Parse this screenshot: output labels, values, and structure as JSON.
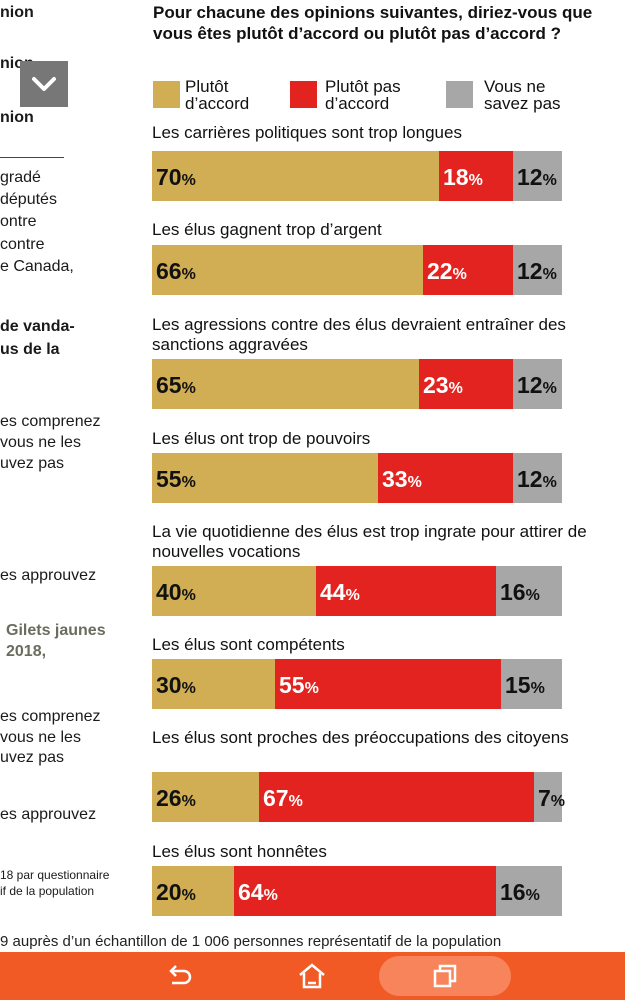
{
  "left_column": [
    "nion",
    "nion",
    "nion",
    "gradé",
    "députés",
    "ontre",
    "contre",
    "e Canada,",
    "de vanda-",
    "us de la",
    "es comprenez",
    "vous ne les",
    "uvez pas",
    "es approuvez",
    "Gilets jaunes",
    "2018,",
    "es comprenez",
    "vous ne les",
    "uvez pas",
    "es approuvez",
    "18 par questionnaire",
    "if de la population"
  ],
  "question": "Pour chacune des opinions suivantes, diriez-vous que vous êtes plutôt d’accord ou plutôt pas d’accord ?",
  "legend": [
    {
      "label": "Plutôt d’accord",
      "color": "#d1ae53"
    },
    {
      "label": "Plutôt pas d’accord",
      "color": "#e2231f"
    },
    {
      "label": "Vous ne savez pas",
      "color": "#a7a7a7"
    }
  ],
  "chart_data": {
    "type": "bar",
    "stacked": true,
    "orientation": "horizontal",
    "unit": "%",
    "categories": [
      "Les carrières politiques sont trop longues",
      "Les élus gagnent trop d’argent",
      "Les agressions contre des élus devraient entraîner des sanctions aggravées",
      "Les élus ont trop de pouvoirs",
      "La vie quotidienne des élus est trop ingrate pour attirer de nouvelles vocations",
      "Les élus sont compétents",
      "Les élus sont proches des préoccupations des citoyens",
      "Les élus sont honnêtes"
    ],
    "series": [
      {
        "name": "Plutôt d’accord",
        "color": "#d1ae53",
        "values": [
          70,
          66,
          65,
          55,
          40,
          30,
          26,
          20
        ]
      },
      {
        "name": "Plutôt pas d’accord",
        "color": "#e2231f",
        "values": [
          18,
          22,
          23,
          33,
          44,
          55,
          67,
          64
        ]
      },
      {
        "name": "Vous ne savez pas",
        "color": "#a7a7a7",
        "values": [
          12,
          12,
          12,
          12,
          16,
          15,
          7,
          16
        ]
      }
    ]
  },
  "footer_note": "9  auprès d’un échantillon de 1 006 personnes représentatif de la population"
}
